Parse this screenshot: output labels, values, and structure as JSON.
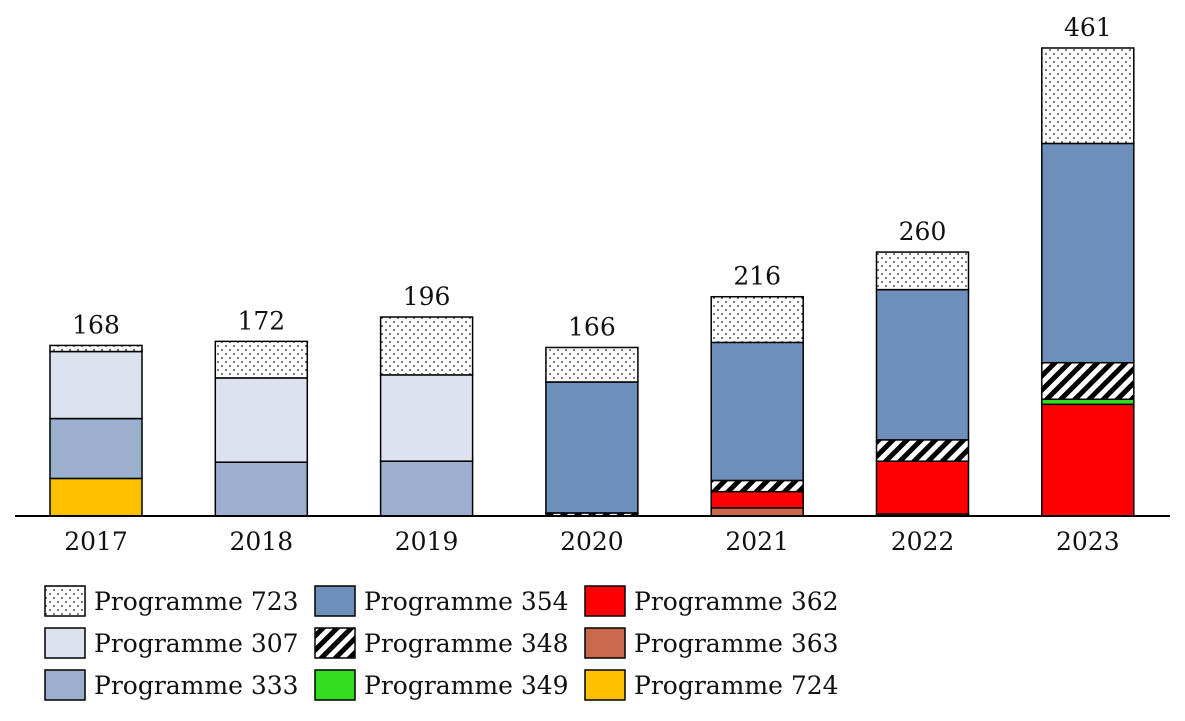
{
  "chart_data": {
    "type": "bar",
    "stacked": true,
    "categories": [
      "2017",
      "2018",
      "2019",
      "2020",
      "2021",
      "2022",
      "2023"
    ],
    "totals": [
      168,
      172,
      196,
      166,
      216,
      260,
      461
    ],
    "series": [
      {
        "name": "Programme 724",
        "fill": "#FFC000",
        "pattern": "none",
        "values": [
          37,
          0,
          0,
          0,
          0,
          0,
          0
        ]
      },
      {
        "name": "Programme 363",
        "fill": "#C8684C",
        "pattern": "none",
        "values": [
          0,
          0,
          0,
          0,
          8,
          2,
          0
        ]
      },
      {
        "name": "Programme 362",
        "fill": "#FF0000",
        "pattern": "none",
        "values": [
          0,
          0,
          0,
          0,
          16,
          52,
          110
        ]
      },
      {
        "name": "Programme 349",
        "fill": "#33DD22",
        "pattern": "none",
        "values": [
          0,
          0,
          0,
          0,
          0,
          0,
          5
        ]
      },
      {
        "name": "Programme 348",
        "fill": "#ffffff",
        "pattern": "diagonal",
        "values": [
          0,
          0,
          0,
          3,
          11,
          21,
          36
        ]
      },
      {
        "name": "Programme 333",
        "fill": "#9BAFCE",
        "pattern": "none",
        "values": [
          59,
          53,
          54,
          0,
          0,
          0,
          0
        ]
      },
      {
        "name": "Programme 307",
        "fill": "#DCE3EE",
        "pattern": "none",
        "values": [
          66,
          83,
          85,
          0,
          0,
          0,
          0
        ]
      },
      {
        "name": "Programme 354",
        "fill": "#6E8FBA",
        "pattern": "none",
        "values": [
          0,
          0,
          0,
          129,
          136,
          148,
          216
        ]
      },
      {
        "name": "Programme 723",
        "fill": "#ffffff",
        "pattern": "dots",
        "values": [
          6,
          36,
          57,
          34,
          45,
          37,
          94
        ]
      }
    ],
    "legend": {
      "position": "bottom",
      "columns": [
        [
          "Programme 723",
          "Programme 307",
          "Programme 333"
        ],
        [
          "Programme 354",
          "Programme 348",
          "Programme 349"
        ],
        [
          "Programme 362",
          "Programme 363",
          "Programme 724"
        ]
      ]
    },
    "ylim": [
      0,
      461
    ],
    "grid": false,
    "y_axis_visible": false
  }
}
